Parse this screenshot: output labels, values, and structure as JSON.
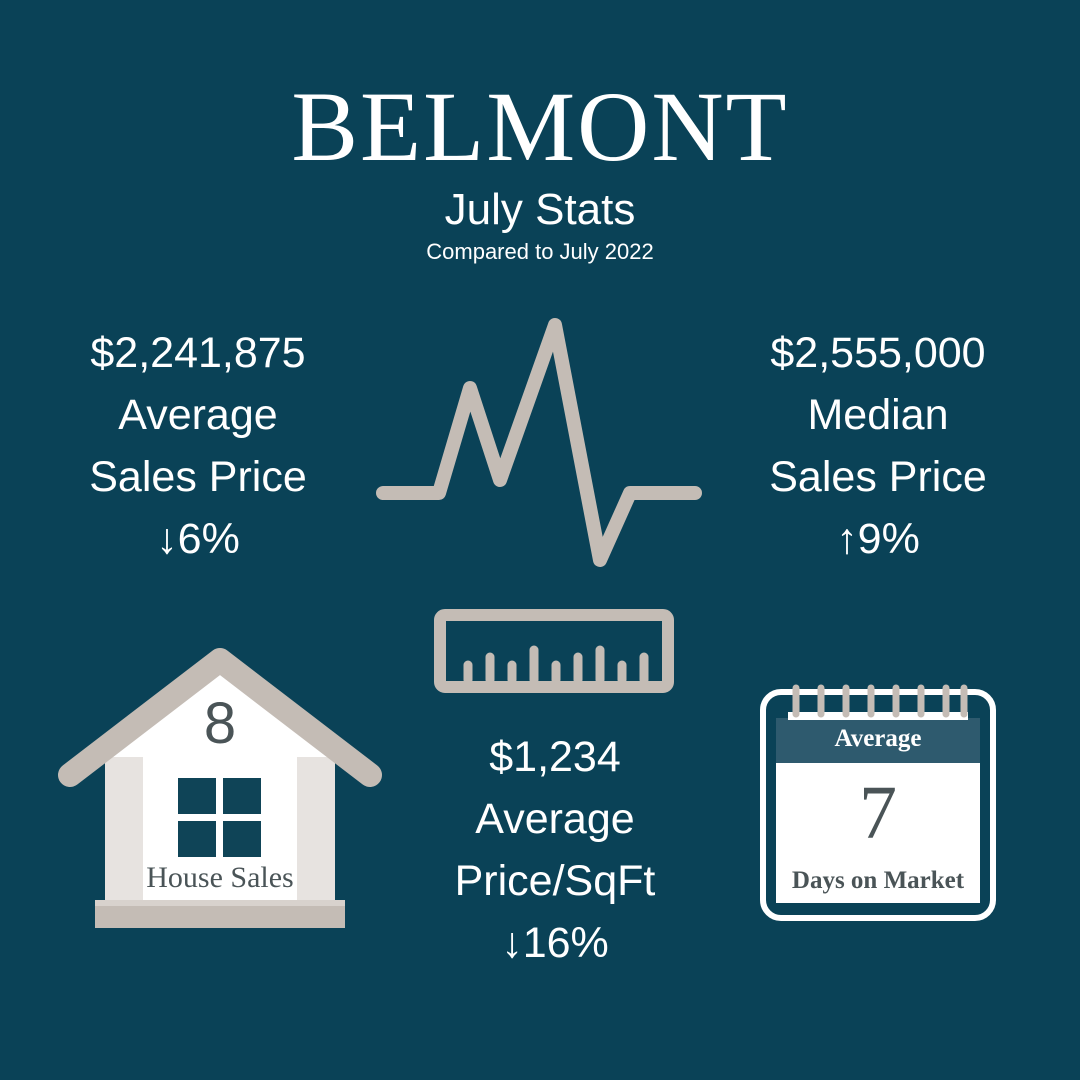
{
  "header": {
    "title": "BELMONT",
    "subtitle": "July Stats",
    "comparison": "Compared to July 2022"
  },
  "stats": {
    "average_sales_price": {
      "value": "$2,241,875",
      "label_line1": "Average",
      "label_line2": "Sales Price",
      "change": "↓6%"
    },
    "median_sales_price": {
      "value": "$2,555,000",
      "label_line1": "Median",
      "label_line2": "Sales Price",
      "change": "↑9%"
    },
    "average_price_sqft": {
      "value": "$1,234",
      "label_line1": "Average",
      "label_line2": "Price/SqFt",
      "change": "↓16%"
    }
  },
  "house": {
    "count": "8",
    "label": "House Sales"
  },
  "calendar": {
    "header": "Average",
    "number": "7",
    "label": "Days on Market"
  },
  "colors": {
    "background": "#0a4257",
    "icon_gray": "#c4bcb5",
    "calendar_header": "#2e5a6e",
    "dark_text": "#4a5457",
    "window": "#0f4457"
  },
  "icons": {
    "pulse": "heartbeat-line-icon",
    "ruler": "ruler-icon",
    "house": "house-icon",
    "calendar": "calendar-icon"
  }
}
